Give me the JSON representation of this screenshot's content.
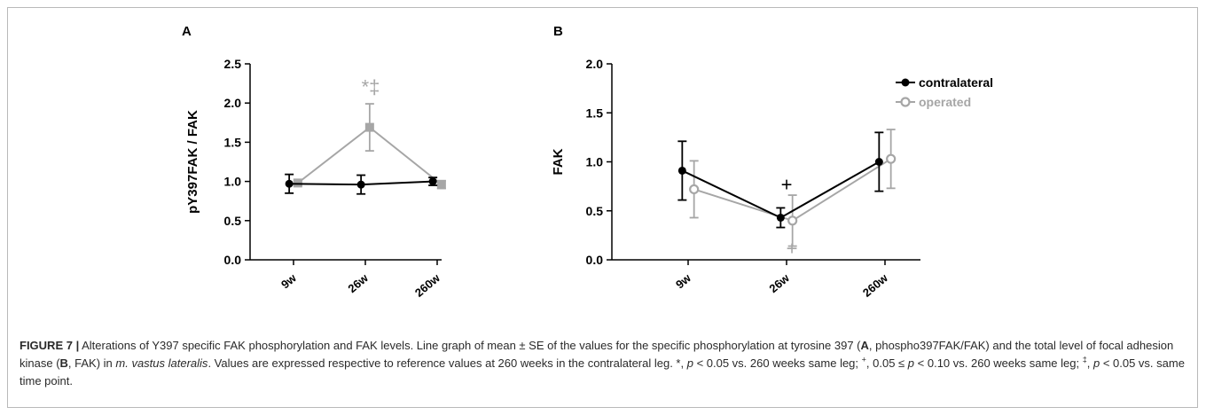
{
  "chart_data": [
    {
      "panel": "A",
      "type": "line",
      "ylabel": "pY397FAK  / FAK",
      "categories": [
        "9w",
        "26w",
        "260w"
      ],
      "yticks": [
        "0.0",
        "0.5",
        "1.0",
        "1.5",
        "2.0",
        "2.5"
      ],
      "ylim": [
        0,
        2.5
      ],
      "grid": false,
      "series": [
        {
          "key": "contralateral",
          "color": "#000000",
          "marker": "circle-filled",
          "x_offset": -0.06,
          "values": [
            0.97,
            0.96,
            1.0
          ],
          "errors": [
            0.12,
            0.12,
            0.05
          ]
        },
        {
          "key": "operated",
          "color": "#a6a6a6",
          "marker": "square-filled",
          "x_offset": 0.06,
          "values": [
            0.98,
            1.69,
            0.96
          ],
          "errors": [
            0.03,
            0.3,
            0.05
          ]
        }
      ],
      "annotations": [
        {
          "text": "*‡",
          "category": "26w",
          "y": 2.12,
          "color": "#a6a6a6"
        }
      ]
    },
    {
      "panel": "B",
      "type": "line",
      "ylabel": "FAK",
      "categories": [
        "9w",
        "26w",
        "260w"
      ],
      "yticks": [
        "0.0",
        "0.5",
        "1.0",
        "1.5",
        "2.0"
      ],
      "ylim": [
        0,
        2.0
      ],
      "grid": false,
      "legend_position": "top-right",
      "series": [
        {
          "name": "contralateral",
          "color": "#000000",
          "marker": "circle-filled",
          "x_offset": -0.06,
          "values": [
            0.91,
            0.43,
            1.0
          ],
          "errors": [
            0.3,
            0.1,
            0.3
          ]
        },
        {
          "name": "operated",
          "color": "#a6a6a6",
          "marker": "circle-open",
          "x_offset": 0.06,
          "values": [
            0.72,
            0.4,
            1.03
          ],
          "errors": [
            0.29,
            0.26,
            0.3
          ]
        }
      ],
      "annotations": [
        {
          "text": "+",
          "category": "26w",
          "y": 0.7,
          "color": "#000000"
        },
        {
          "text": "+",
          "category": "26w",
          "y": 0.05,
          "color": "#a6a6a6"
        }
      ]
    }
  ],
  "caption": {
    "label": "FIGURE 7 |",
    "s1": " Alterations of Y397 specific FAK phosphorylation and FAK levels. Line graph of mean ± SE of the values for the specific phosphorylation at tyrosine 397 (",
    "b1": "A",
    "s2": ", phospho397FAK/FAK) and the total level of focal adhesion kinase (",
    "b2": "B",
    "s3": ", FAK) in ",
    "i1": "m. vastus lateralis",
    "s4": ". Values are expressed respective to reference values at 260 weeks in the contralateral leg. *, ",
    "p1": "p",
    "s5": " < 0.05 vs. 260 weeks same leg; ",
    "sup1": "+",
    "s6": ", 0.05 ≤ ",
    "p2": "p",
    "s7": " < 0.10 vs. 260 weeks same leg; ",
    "sup2": "‡",
    "s8": ", ",
    "p3": "p",
    "s9": " < 0.05 vs. same time point."
  }
}
